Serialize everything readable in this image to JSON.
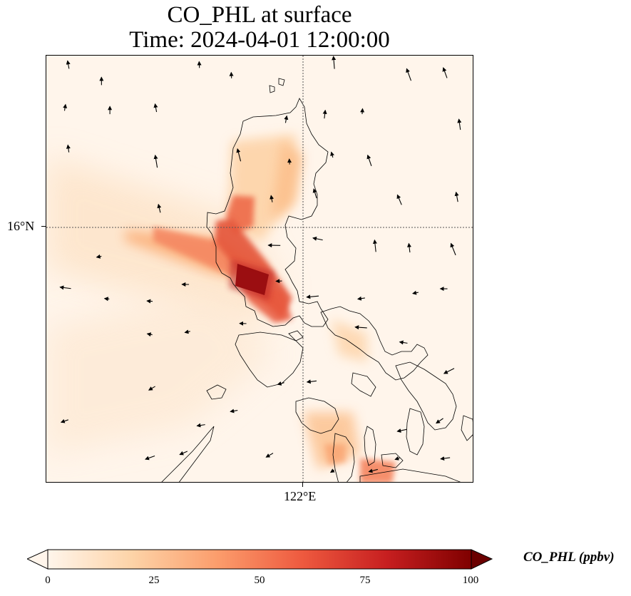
{
  "title": {
    "line1": "CO_PHL at surface",
    "line2": "Time: 2024-04-01 12:00:00"
  },
  "map": {
    "lon_label": "122°E",
    "lat_label": "16°N",
    "colors": {
      "background": "#fff5eb",
      "low": "#fdd8b0",
      "mid": "#f4845f",
      "high": "#c2282b",
      "max": "#7f0000",
      "coast": "#000000",
      "gridline": "#555555"
    }
  },
  "colorbar": {
    "label": "CO_PHL (ppbv)",
    "ticks": [
      "0",
      "25",
      "50",
      "75",
      "100"
    ],
    "min": 0,
    "max": 100,
    "colors": [
      "#fff5eb",
      "#fdd3a7",
      "#fc9d6c",
      "#ee5a3f",
      "#c71f20",
      "#7f0000"
    ]
  }
}
